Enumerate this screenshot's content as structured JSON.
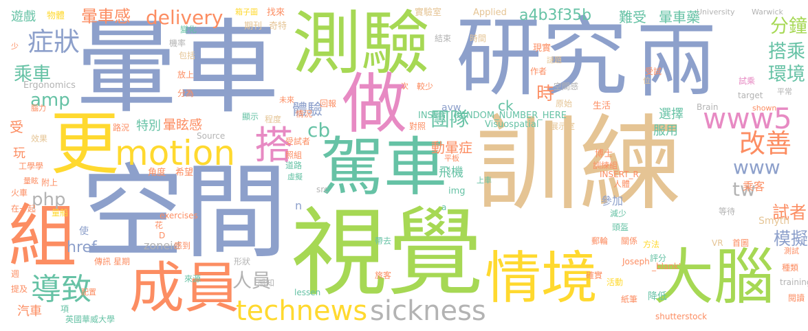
{
  "palette": {
    "green": "#a6d854",
    "blue": "#8da0cb",
    "tan": "#e5c494",
    "orange": "#fc8d62",
    "yellow": "#ffd92f",
    "teal": "#66c2a5",
    "pink": "#e78ac3",
    "gray": "#b3b3b3"
  },
  "words": [
    "暈車",
    "訓練",
    "空間",
    "視覺",
    "研究",
    "兩",
    "測驗",
    "做",
    "更",
    "駕車",
    "組",
    "成員",
    "情境",
    "大腦",
    "motion",
    "technews",
    "sickness",
    "搭",
    "導致",
    "www5",
    "www",
    "改善",
    "cb",
    "php",
    "amp",
    "症狀",
    "乘車",
    "團隊",
    "delivery",
    "暈車感",
    "a4b3f35b",
    "分鐘",
    "搭乘",
    "環境",
    "模擬",
    "試者",
    "tw",
    "人員",
    "體驗",
    "時",
    "特別",
    "服用",
    "選擇",
    "動暈症",
    "暈眩感",
    "飛機",
    "href",
    "汽車",
    "受",
    "玩",
    "遊戲",
    "物體",
    "箱子圖",
    "找來",
    "實驗室",
    "Applied",
    "University",
    "Warwick",
    "難受",
    "暈車藥",
    "期刊",
    "奇特",
    "變化",
    "機率",
    "包括",
    "少",
    "結束",
    "時間",
    "現實",
    "謎題",
    "作者",
    "受試",
    "放上",
    "Ergonomics",
    "分為",
    "次",
    "較少",
    "空間感",
    "位",
    "試乘",
    "平常",
    "target",
    "腦力",
    "未來",
    "回報",
    "情況",
    "avw",
    "ck",
    "原始",
    "生活",
    "Brain",
    "shown",
    "顯示",
    "程度",
    "對照",
    "Visuospatial",
    "展示室",
    "效果",
    "路況",
    "Source",
    "INSERT_RANDOM_NUMBER_HERE",
    "工學學",
    "受試者",
    "照組",
    "平板",
    "博士",
    "量眩",
    "道路",
    "訓練組",
    "角度",
    "希望",
    "虛擬",
    "上車",
    "INSERT_R",
    "人體",
    "附上",
    "src",
    "img",
    "乘客",
    "火車",
    "參加",
    "n",
    "a",
    "在一起",
    "量船",
    "exercises",
    "花",
    "減少",
    "等待",
    "Smyth",
    "D",
    "頭盔",
    "使",
    "zoneid",
    "感到",
    "帶去",
    "郵輪",
    "關係",
    "方法",
    "VR",
    "首圖",
    "測試",
    "週",
    "傳訊",
    "星期",
    "形狀",
    "Joseph",
    "評分",
    "_blank'",
    "種類",
    "提及",
    "來源",
    "旅客",
    "確實",
    "活動",
    "training",
    "配置",
    "感知",
    "lessen",
    "紙筆",
    "降低",
    "閱讀",
    "項",
    "英國華威大學",
    "shutterstock",
    "海軍"
  ]
}
